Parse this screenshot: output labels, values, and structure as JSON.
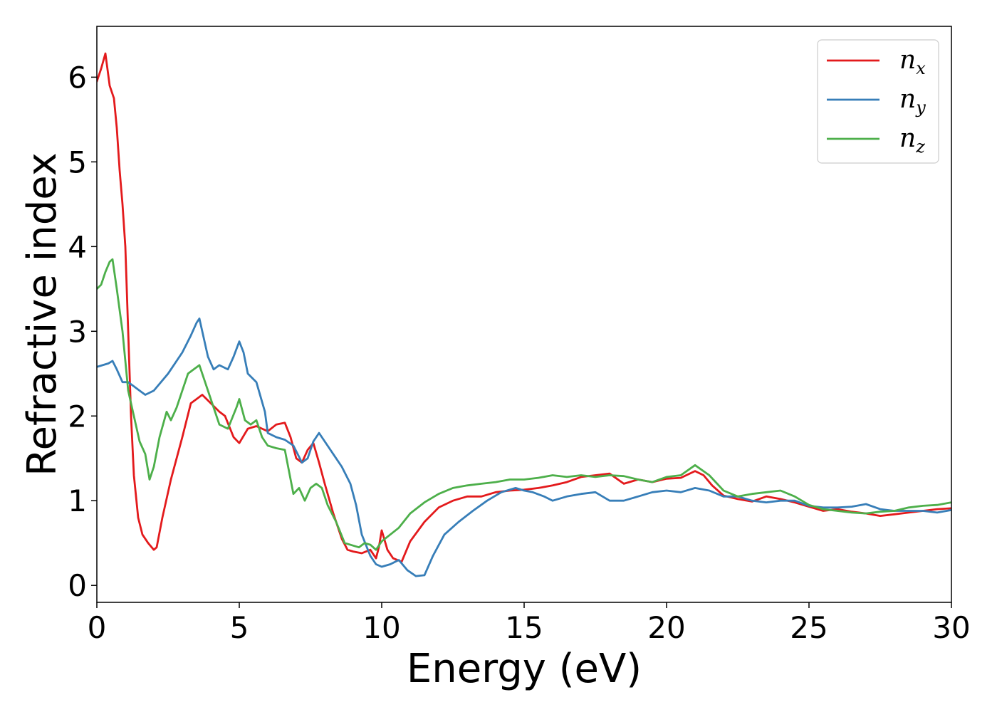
{
  "chart_data": {
    "type": "line",
    "xlabel": "Energy (eV)",
    "ylabel": "Refractive index",
    "xlim": [
      0,
      30
    ],
    "ylim": [
      -0.2,
      6.6
    ],
    "xticks": [
      0,
      5,
      10,
      15,
      20,
      25,
      30
    ],
    "yticks": [
      0,
      1,
      2,
      3,
      4,
      5,
      6
    ],
    "grid": false,
    "legend": {
      "position": "top-right"
    },
    "series": [
      {
        "name": "n_x",
        "label_main": "n",
        "label_sub": "x",
        "color": "#e31a1c",
        "x": [
          0,
          0.15,
          0.3,
          0.45,
          0.6,
          0.7,
          0.8,
          0.9,
          1.0,
          1.1,
          1.2,
          1.3,
          1.45,
          1.6,
          1.8,
          2.0,
          2.1,
          2.3,
          2.6,
          3.0,
          3.3,
          3.5,
          3.7,
          4.0,
          4.3,
          4.5,
          4.8,
          5.0,
          5.3,
          5.6,
          5.8,
          6.0,
          6.3,
          6.6,
          6.8,
          7.0,
          7.2,
          7.4,
          7.6,
          7.8,
          8.0,
          8.3,
          8.6,
          8.8,
          9.0,
          9.3,
          9.6,
          9.8,
          9.9,
          10.0,
          10.2,
          10.4,
          10.7,
          11.0,
          11.5,
          12.0,
          12.5,
          13.0,
          13.5,
          14.0,
          14.5,
          15.0,
          15.5,
          16.0,
          16.5,
          17.0,
          17.5,
          18.0,
          18.5,
          19.0,
          19.5,
          20.0,
          20.5,
          21.0,
          21.3,
          21.6,
          22.0,
          22.5,
          23.0,
          23.5,
          24.0,
          24.5,
          25.0,
          25.5,
          26.0,
          26.5,
          27.0,
          27.5,
          28.0,
          28.5,
          29.0,
          29.5,
          30.0
        ],
        "y": [
          5.95,
          6.1,
          6.28,
          5.9,
          5.75,
          5.4,
          4.9,
          4.5,
          4.0,
          3.0,
          2.0,
          1.3,
          0.8,
          0.6,
          0.5,
          0.42,
          0.45,
          0.8,
          1.25,
          1.75,
          2.15,
          2.2,
          2.25,
          2.15,
          2.05,
          2.0,
          1.75,
          1.68,
          1.85,
          1.88,
          1.85,
          1.82,
          1.9,
          1.92,
          1.75,
          1.5,
          1.45,
          1.6,
          1.68,
          1.45,
          1.2,
          0.85,
          0.55,
          0.42,
          0.4,
          0.38,
          0.42,
          0.32,
          0.45,
          0.65,
          0.42,
          0.32,
          0.28,
          0.52,
          0.75,
          0.92,
          1.0,
          1.05,
          1.05,
          1.1,
          1.12,
          1.13,
          1.15,
          1.18,
          1.22,
          1.28,
          1.3,
          1.32,
          1.2,
          1.25,
          1.22,
          1.26,
          1.27,
          1.35,
          1.3,
          1.18,
          1.06,
          1.02,
          0.99,
          1.05,
          1.02,
          0.98,
          0.93,
          0.88,
          0.9,
          0.87,
          0.85,
          0.82,
          0.84,
          0.86,
          0.88,
          0.9,
          0.91
        ]
      },
      {
        "name": "n_y",
        "label_main": "n",
        "label_sub": "y",
        "color": "#377eb8",
        "x": [
          0,
          0.2,
          0.4,
          0.55,
          0.7,
          0.9,
          1.1,
          1.3,
          1.5,
          1.7,
          2.0,
          2.5,
          3.0,
          3.3,
          3.5,
          3.6,
          3.7,
          3.9,
          4.1,
          4.3,
          4.6,
          4.8,
          5.0,
          5.15,
          5.3,
          5.6,
          5.9,
          6.0,
          6.3,
          6.6,
          6.9,
          7.2,
          7.4,
          7.6,
          7.8,
          8.0,
          8.3,
          8.6,
          8.9,
          9.1,
          9.3,
          9.6,
          9.8,
          10.0,
          10.3,
          10.6,
          10.9,
          11.2,
          11.5,
          11.8,
          12.2,
          12.7,
          13.2,
          13.7,
          14.2,
          14.7,
          15.0,
          15.3,
          15.7,
          16.0,
          16.5,
          17.0,
          17.5,
          18.0,
          18.5,
          19.0,
          19.5,
          20.0,
          20.5,
          21.0,
          21.5,
          22.0,
          22.5,
          23.0,
          23.5,
          24.0,
          24.5,
          25.0,
          25.5,
          26.0,
          26.5,
          27.0,
          27.5,
          28.0,
          28.5,
          29.0,
          29.5,
          30.0
        ],
        "y": [
          2.58,
          2.6,
          2.62,
          2.65,
          2.55,
          2.4,
          2.4,
          2.35,
          2.3,
          2.25,
          2.3,
          2.5,
          2.75,
          2.95,
          3.1,
          3.15,
          3.0,
          2.7,
          2.55,
          2.6,
          2.55,
          2.7,
          2.88,
          2.75,
          2.5,
          2.4,
          2.05,
          1.8,
          1.75,
          1.72,
          1.65,
          1.45,
          1.5,
          1.7,
          1.8,
          1.7,
          1.55,
          1.4,
          1.2,
          0.95,
          0.6,
          0.35,
          0.25,
          0.22,
          0.25,
          0.3,
          0.18,
          0.11,
          0.12,
          0.35,
          0.6,
          0.75,
          0.88,
          1.0,
          1.1,
          1.15,
          1.12,
          1.1,
          1.05,
          1.0,
          1.05,
          1.08,
          1.1,
          1.0,
          1.0,
          1.05,
          1.1,
          1.12,
          1.1,
          1.15,
          1.12,
          1.05,
          1.05,
          1.0,
          0.98,
          1.0,
          1.0,
          0.94,
          0.92,
          0.92,
          0.93,
          0.96,
          0.9,
          0.88,
          0.88,
          0.88,
          0.86,
          0.89
        ]
      },
      {
        "name": "n_z",
        "label_main": "n",
        "label_sub": "z",
        "color": "#4daf4a",
        "x": [
          0,
          0.15,
          0.3,
          0.45,
          0.55,
          0.7,
          0.9,
          1.1,
          1.3,
          1.5,
          1.7,
          1.85,
          2.0,
          2.2,
          2.45,
          2.6,
          2.8,
          3.0,
          3.2,
          3.4,
          3.6,
          3.8,
          4.0,
          4.3,
          4.6,
          4.9,
          5.0,
          5.2,
          5.4,
          5.6,
          5.8,
          6.0,
          6.3,
          6.6,
          6.9,
          7.1,
          7.3,
          7.5,
          7.7,
          7.9,
          8.1,
          8.4,
          8.7,
          9.0,
          9.2,
          9.4,
          9.6,
          9.8,
          10.0,
          10.3,
          10.6,
          11.0,
          11.5,
          12.0,
          12.5,
          13.0,
          13.5,
          14.0,
          14.5,
          15.0,
          15.5,
          16.0,
          16.5,
          17.0,
          17.5,
          18.0,
          18.5,
          19.0,
          19.5,
          20.0,
          20.5,
          21.0,
          21.5,
          22.0,
          22.5,
          23.0,
          23.5,
          24.0,
          24.5,
          25.0,
          25.5,
          26.0,
          26.5,
          27.0,
          27.5,
          28.0,
          28.5,
          29.0,
          29.5,
          30.0
        ],
        "y": [
          3.5,
          3.55,
          3.7,
          3.82,
          3.85,
          3.5,
          3.0,
          2.3,
          2.0,
          1.7,
          1.55,
          1.25,
          1.4,
          1.75,
          2.05,
          1.95,
          2.1,
          2.3,
          2.5,
          2.55,
          2.6,
          2.4,
          2.2,
          1.9,
          1.85,
          2.1,
          2.2,
          1.95,
          1.9,
          1.95,
          1.75,
          1.65,
          1.62,
          1.6,
          1.08,
          1.15,
          1.0,
          1.15,
          1.2,
          1.15,
          0.95,
          0.75,
          0.5,
          0.47,
          0.45,
          0.5,
          0.48,
          0.42,
          0.52,
          0.6,
          0.68,
          0.85,
          0.98,
          1.08,
          1.15,
          1.18,
          1.2,
          1.22,
          1.25,
          1.25,
          1.27,
          1.3,
          1.28,
          1.3,
          1.28,
          1.3,
          1.29,
          1.25,
          1.22,
          1.28,
          1.3,
          1.42,
          1.3,
          1.12,
          1.05,
          1.08,
          1.1,
          1.12,
          1.05,
          0.95,
          0.9,
          0.88,
          0.86,
          0.85,
          0.87,
          0.88,
          0.92,
          0.94,
          0.95,
          0.98
        ]
      }
    ]
  }
}
